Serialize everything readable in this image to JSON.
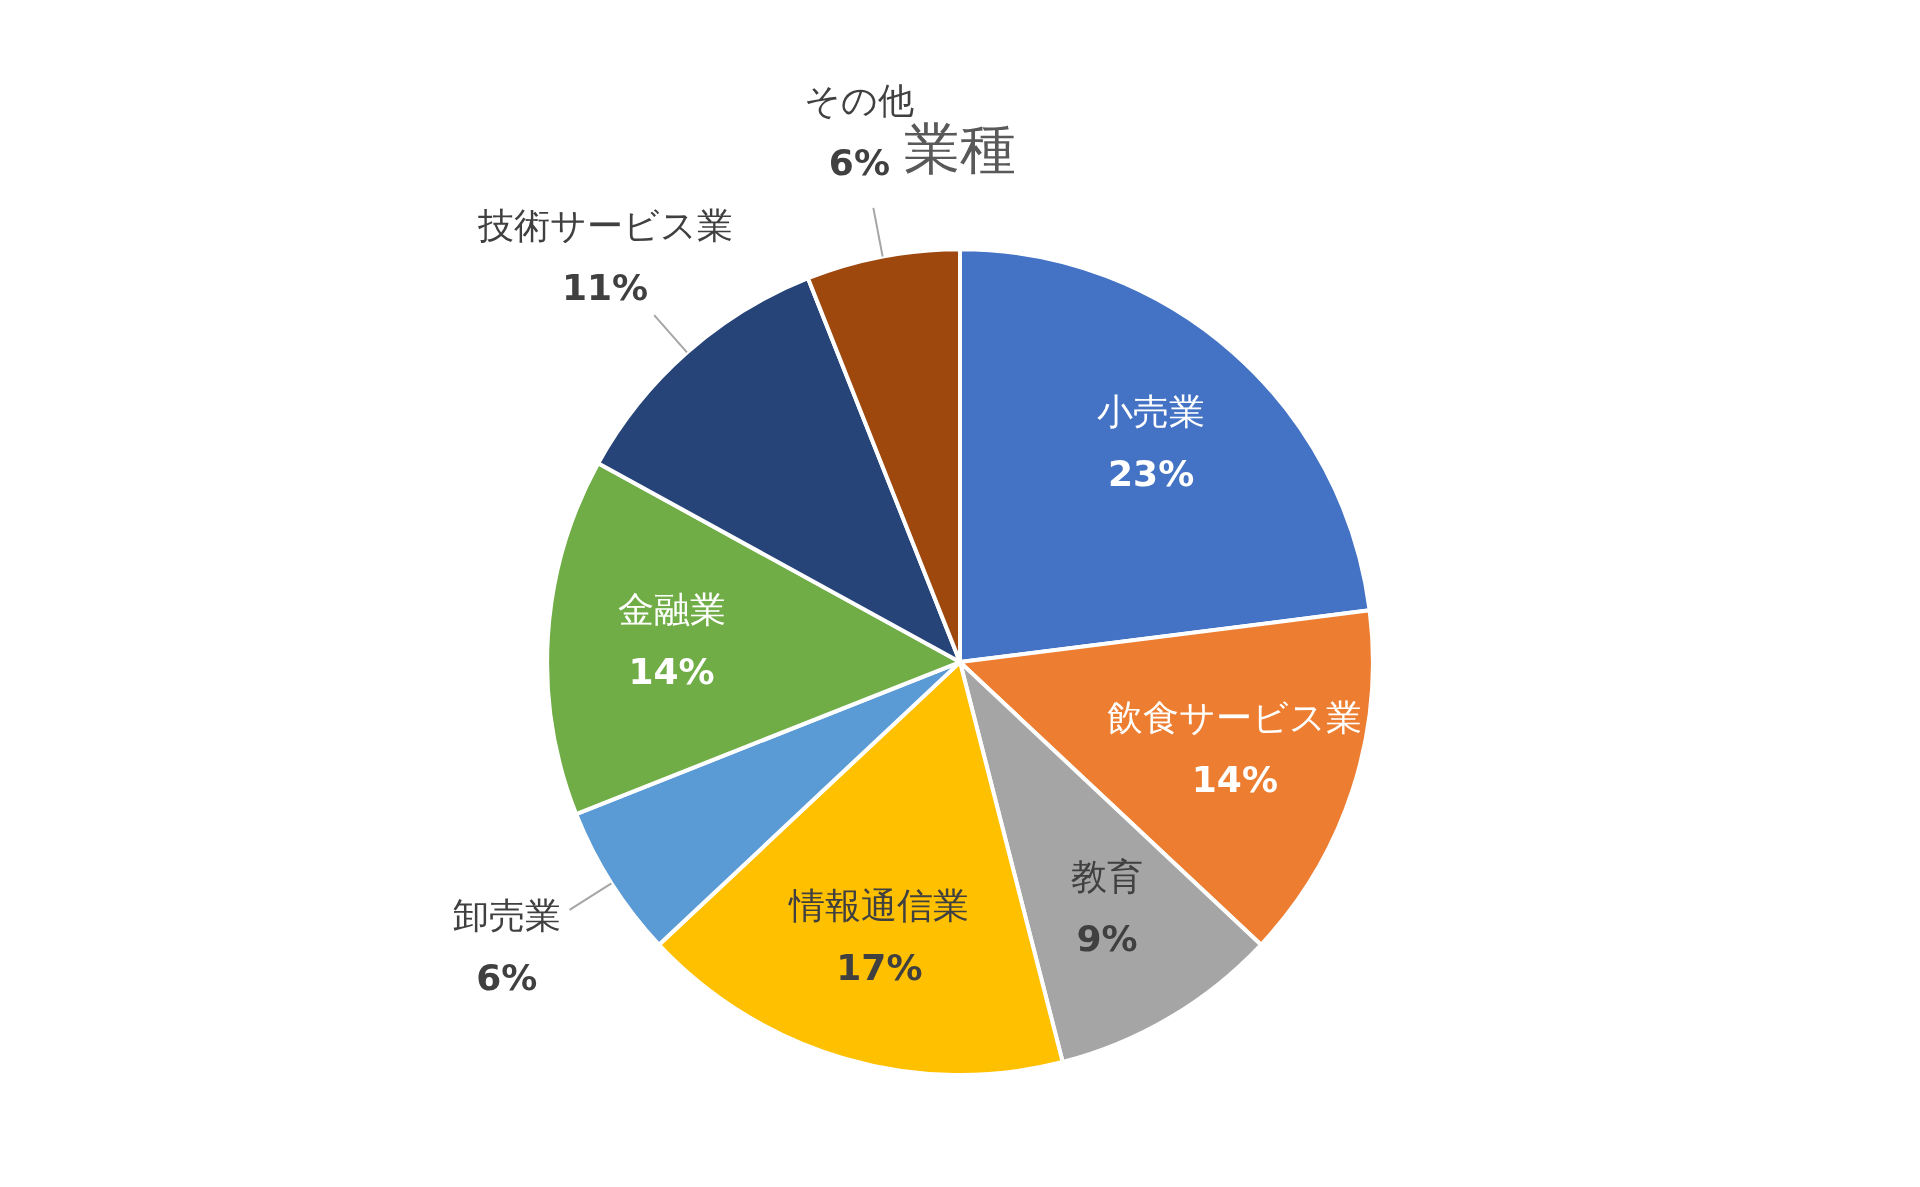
{
  "chart_data": {
    "type": "pie",
    "title": "業種",
    "categories": [
      "小売業",
      "飲食サービス業",
      "教育",
      "情報通信業",
      "卸売業",
      "金融業",
      "技術サービス業",
      "その他"
    ],
    "values": [
      23,
      14,
      9,
      17,
      6,
      14,
      11,
      6
    ],
    "value_labels": [
      "23%",
      "14%",
      "9%",
      "17%",
      "6%",
      "14%",
      "11%",
      "6%"
    ],
    "colors": [
      "#4472c4",
      "#ed7d31",
      "#a5a5a5",
      "#ffc000",
      "#5b9bd5",
      "#70ad47",
      "#264478",
      "#9e480e"
    ],
    "legend": false
  }
}
